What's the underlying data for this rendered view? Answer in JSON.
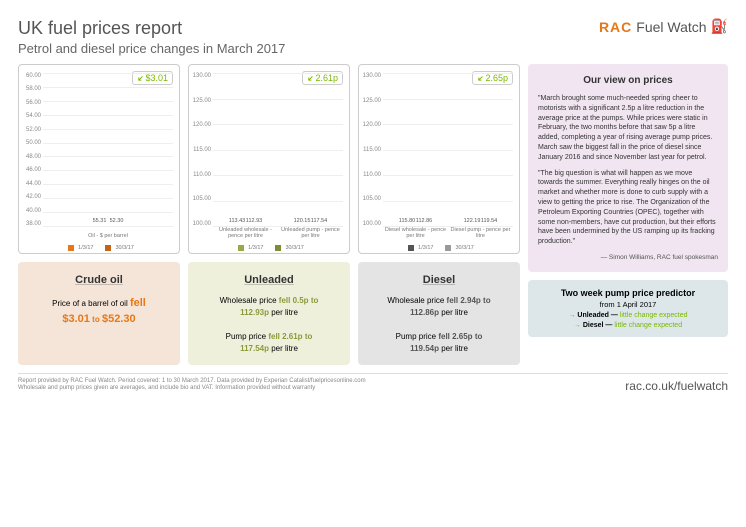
{
  "header": {
    "title": "UK fuel prices report",
    "subtitle": "Petrol and diesel price changes in March 2017",
    "logo_rac": "RAC",
    "logo_fw": "Fuel Watch"
  },
  "charts": {
    "oil": {
      "badge": "$3.01",
      "badge_color": "#7ab800",
      "ymin": 38,
      "ymax": 60,
      "yticks": [
        "60.00",
        "58.00",
        "56.00",
        "54.00",
        "52.00",
        "50.00",
        "48.00",
        "46.00",
        "44.00",
        "42.00",
        "40.00",
        "38.00"
      ],
      "groups": [
        {
          "label": "Oil - $ per barrel",
          "bars": [
            {
              "v": 55.31,
              "c": "#e67817",
              "label": "55.31"
            },
            {
              "v": 52.3,
              "c": "#c46414",
              "label": "52.30"
            }
          ]
        }
      ],
      "legend": [
        "1/3/17",
        "30/3/17"
      ],
      "legcolors": [
        "#e67817",
        "#c46414"
      ]
    },
    "unleaded": {
      "badge": "2.61p",
      "badge_color": "#7ab800",
      "ymin": 100,
      "ymax": 130,
      "yticks": [
        "130.00",
        "125.00",
        "120.00",
        "115.00",
        "110.00",
        "105.00",
        "100.00"
      ],
      "groups": [
        {
          "label": "Unleaded wholesale - pence per litre",
          "bars": [
            {
              "v": 113.43,
              "c": "#9aa84a",
              "label": "113.43"
            },
            {
              "v": 112.93,
              "c": "#7e8c3a",
              "label": "112.93"
            }
          ]
        },
        {
          "label": "Unleaded pump - pence per litre",
          "bars": [
            {
              "v": 120.15,
              "c": "#9aa84a",
              "label": "120.15"
            },
            {
              "v": 117.54,
              "c": "#7e8c3a",
              "label": "117.54"
            }
          ]
        }
      ],
      "legend": [
        "1/3/17",
        "30/3/17"
      ],
      "legcolors": [
        "#9aa84a",
        "#7e8c3a"
      ]
    },
    "diesel": {
      "badge": "2.65p",
      "badge_color": "#7ab800",
      "ymin": 100,
      "ymax": 130,
      "yticks": [
        "130.00",
        "125.00",
        "120.00",
        "115.00",
        "110.00",
        "105.00",
        "100.00"
      ],
      "groups": [
        {
          "label": "Diesel wholesale - pence per litre",
          "bars": [
            {
              "v": 115.8,
              "c": "#555",
              "label": "115.80"
            },
            {
              "v": 112.86,
              "c": "#999",
              "label": "112.86"
            }
          ]
        },
        {
          "label": "Diesel pump - pence per litre",
          "bars": [
            {
              "v": 122.19,
              "c": "#555",
              "label": "122.19"
            },
            {
              "v": 119.54,
              "c": "#999",
              "label": "119.54"
            }
          ]
        }
      ],
      "legend": [
        "1/3/17",
        "30/3/17"
      ],
      "legcolors": [
        "#555",
        "#999"
      ]
    }
  },
  "cards": {
    "oil": {
      "title": "Crude oil",
      "bg": "#f5e5d8",
      "color": "#e67817",
      "line1a": "Price of a barrel of oil",
      "line1b": "fell",
      "line2a": "$3.01",
      "line2b": "to",
      "line2c": "$52.30"
    },
    "unleaded": {
      "title": "Unleaded",
      "bg": "#eef0dc",
      "color": "#8a9a3a",
      "w1": "Wholesale price",
      "w2": "fell 0.5p",
      "w3": "to",
      "w4": "112.93p",
      "w5": "per litre",
      "p1": "Pump price",
      "p2": "fell 2.61p",
      "p3": "to",
      "p4": "117.54p",
      "p5": "per litre"
    },
    "diesel": {
      "title": "Diesel",
      "bg": "#e4e4e4",
      "color": "#555",
      "w1": "Wholesale price",
      "w2": "fell 2.94p",
      "w3": "to",
      "w4": "112.86p",
      "w5": "per litre",
      "p1": "Pump price",
      "p2": "fell 2.65p",
      "p3": "to",
      "p4": "119.54p",
      "p5": "per litre"
    }
  },
  "view": {
    "title": "Our view on prices",
    "p1": "\"March brought some much-needed spring cheer to motorists with a significant 2.5p a litre reduction in the average price at the pumps. While prices were static in February, the two months before that saw 5p a litre added, completing a year of rising average pump prices. March saw the biggest fall in the price of diesel since January 2016 and since November last year for petrol.",
    "p2": "\"The big question is what will happen as we move towards the summer. Everything really hinges on the oil market and whether more is done to curb supply with a view to getting the price to rise. The Organization of the Petroleum Exporting Countries (OPEC), together with some non-members, have cut production, but their efforts have been undermined by the US ramping up its fracking production.\"",
    "attrib": "— Simon Williams, RAC fuel spokesman"
  },
  "predictor": {
    "title": "Two week pump price predictor",
    "sub": "from 1 April 2017",
    "r1a": "Unleaded —",
    "r1b": "little change expected",
    "r2a": "Diesel —",
    "r2b": "little change expected"
  },
  "footer": {
    "l1": "Report provided by RAC Fuel Watch. Period covered: 1 to 30 March 2017. Data provided by Experian Catalist/fuelpricesonline.com",
    "l2": "Wholesale and pump prices given are averages, and include bio and VAT. Information provided without warranty",
    "url": "rac.co.uk/fuelwatch"
  }
}
